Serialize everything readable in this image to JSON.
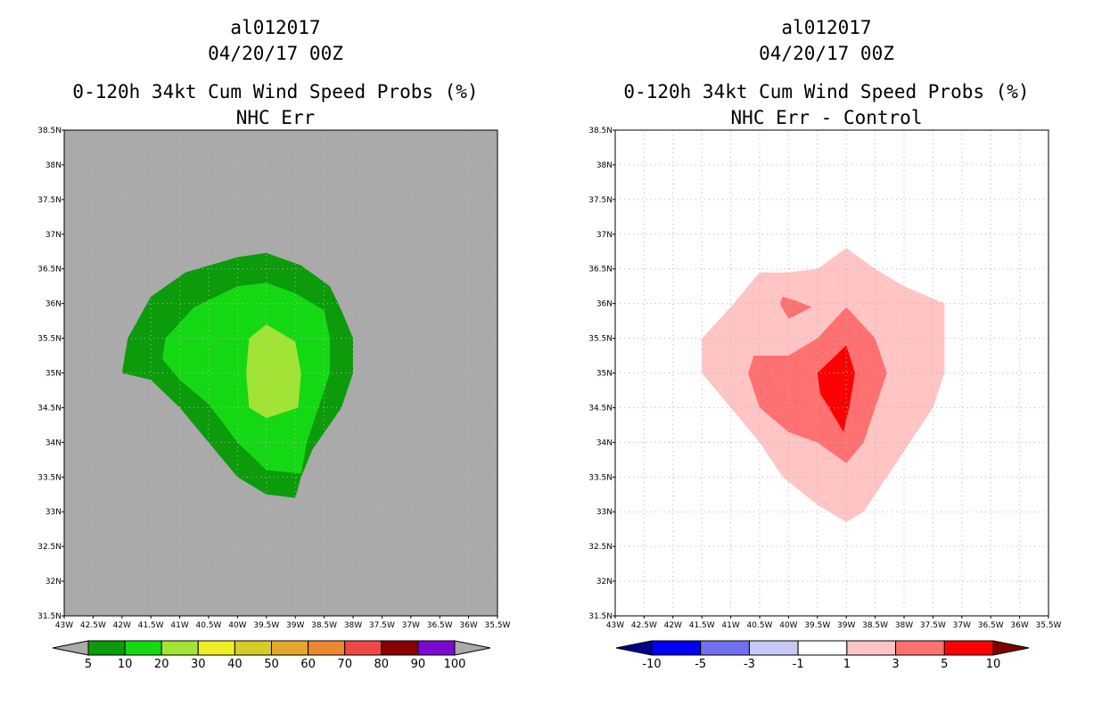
{
  "chart_data": [
    {
      "type": "heatmap",
      "title": [
        "al012017",
        "04/20/17 00Z",
        "0-120h 34kt Cum Wind Speed Probs (%)",
        "NHC Err"
      ],
      "x_ticks": [
        "43W",
        "42.5W",
        "42W",
        "41.5W",
        "41W",
        "40.5W",
        "40W",
        "39.5W",
        "39W",
        "38.5W",
        "38W",
        "37.5W",
        "37W",
        "36.5W",
        "36W",
        "35.5W"
      ],
      "y_ticks": [
        "31.5N",
        "32N",
        "32.5N",
        "33N",
        "33.5N",
        "34N",
        "34.5N",
        "35N",
        "35.5N",
        "36N",
        "36.5N",
        "37N",
        "37.5N",
        "38N",
        "38.5N"
      ],
      "xlim": [
        -43,
        -35.5
      ],
      "ylim": [
        31.5,
        38.5
      ],
      "background_color": "#aaaaaa",
      "grid": true,
      "contours": [
        {
          "level": "5-10",
          "color": "#0b9b0b",
          "points": [
            [
              -41.9,
              35.5
            ],
            [
              -41.5,
              36.1
            ],
            [
              -40.9,
              36.45
            ],
            [
              -40.0,
              36.67
            ],
            [
              -39.5,
              36.73
            ],
            [
              -38.9,
              36.55
            ],
            [
              -38.4,
              36.25
            ],
            [
              -38.2,
              35.9
            ],
            [
              -38.0,
              35.5
            ],
            [
              -38.0,
              35.0
            ],
            [
              -38.2,
              34.5
            ],
            [
              -38.7,
              33.9
            ],
            [
              -38.9,
              33.5
            ],
            [
              -39.0,
              33.2
            ],
            [
              -39.5,
              33.25
            ],
            [
              -40.0,
              33.5
            ],
            [
              -40.5,
              34.0
            ],
            [
              -41.0,
              34.5
            ],
            [
              -41.5,
              34.9
            ],
            [
              -42.0,
              35.0
            ]
          ]
        },
        {
          "level": "10-20",
          "color": "#15d815",
          "points": [
            [
              -41.25,
              35.5
            ],
            [
              -40.75,
              35.95
            ],
            [
              -40.0,
              36.25
            ],
            [
              -39.5,
              36.3
            ],
            [
              -39.0,
              36.15
            ],
            [
              -38.5,
              35.9
            ],
            [
              -38.4,
              35.5
            ],
            [
              -38.4,
              35.0
            ],
            [
              -38.6,
              34.5
            ],
            [
              -38.8,
              34.0
            ],
            [
              -38.9,
              33.55
            ],
            [
              -39.5,
              33.6
            ],
            [
              -40.0,
              34.0
            ],
            [
              -40.5,
              34.55
            ],
            [
              -41.0,
              34.9
            ],
            [
              -41.3,
              35.2
            ]
          ]
        },
        {
          "level": "20-30",
          "color": "#a2e434",
          "points": [
            [
              -39.8,
              35.5
            ],
            [
              -39.5,
              35.7
            ],
            [
              -39.0,
              35.45
            ],
            [
              -38.9,
              35.0
            ],
            [
              -38.95,
              34.5
            ],
            [
              -39.5,
              34.35
            ],
            [
              -39.8,
              34.5
            ],
            [
              -39.85,
              35.0
            ]
          ]
        }
      ],
      "colorbar": {
        "labels": [
          "5",
          "10",
          "20",
          "30",
          "40",
          "50",
          "60",
          "70",
          "80",
          "90",
          "100"
        ],
        "colors": [
          "#0b9b0b",
          "#15d815",
          "#a2e434",
          "#eeee22",
          "#d5cc27",
          "#e4a62c",
          "#ee8830",
          "#f04848",
          "#890000",
          "#7d07d3"
        ],
        "under_color": "#aaaaaa",
        "over_color": "#aaaaaa"
      }
    },
    {
      "type": "heatmap",
      "title": [
        "al012017",
        "04/20/17 00Z",
        "0-120h 34kt Cum Wind Speed Probs (%)",
        "NHC Err - Control"
      ],
      "x_ticks": [
        "43W",
        "42.5W",
        "42W",
        "41.5W",
        "41W",
        "40.5W",
        "40W",
        "39.5W",
        "39W",
        "38.5W",
        "38W",
        "37.5W",
        "37W",
        "36.5W",
        "36W",
        "35.5W"
      ],
      "y_ticks": [
        "31.5N",
        "32N",
        "32.5N",
        "33N",
        "33.5N",
        "34N",
        "34.5N",
        "35N",
        "35.5N",
        "36N",
        "36.5N",
        "37N",
        "37.5N",
        "38N",
        "38.5N"
      ],
      "xlim": [
        -43,
        -35.5
      ],
      "ylim": [
        31.5,
        38.5
      ],
      "background_color": "#ffffff",
      "grid": true,
      "contours": [
        {
          "level": "1-3",
          "color": "#ffc4c4",
          "points": [
            [
              -41.5,
              35.5
            ],
            [
              -41.0,
              35.95
            ],
            [
              -40.5,
              36.45
            ],
            [
              -40.0,
              36.45
            ],
            [
              -39.5,
              36.5
            ],
            [
              -39.0,
              36.8
            ],
            [
              -38.5,
              36.5
            ],
            [
              -38.0,
              36.25
            ],
            [
              -37.3,
              36.0
            ],
            [
              -37.3,
              35.5
            ],
            [
              -37.3,
              35.0
            ],
            [
              -37.5,
              34.5
            ],
            [
              -37.9,
              34.0
            ],
            [
              -38.3,
              33.5
            ],
            [
              -38.7,
              33.0
            ],
            [
              -39.0,
              32.85
            ],
            [
              -39.5,
              33.1
            ],
            [
              -40.1,
              33.5
            ],
            [
              -40.5,
              34.0
            ],
            [
              -41.0,
              34.5
            ],
            [
              -41.5,
              35.0
            ]
          ]
        },
        {
          "level": "3-5",
          "color": "#ff7070",
          "points": [
            [
              -40.6,
              35.25
            ],
            [
              -40.0,
              35.25
            ],
            [
              -39.5,
              35.5
            ],
            [
              -39.0,
              35.95
            ],
            [
              -38.5,
              35.5
            ],
            [
              -38.3,
              35.0
            ],
            [
              -38.5,
              34.5
            ],
            [
              -38.7,
              34.0
            ],
            [
              -39.0,
              33.7
            ],
            [
              -39.5,
              34.0
            ],
            [
              -40.0,
              34.15
            ],
            [
              -40.5,
              34.5
            ],
            [
              -40.7,
              35.0
            ]
          ]
        },
        {
          "level": "3-5 spot",
          "color": "#ff7070",
          "points": [
            [
              -40.1,
              36.1
            ],
            [
              -39.9,
              36.05
            ],
            [
              -39.6,
              35.95
            ],
            [
              -40.0,
              35.78
            ],
            [
              -40.15,
              36.0
            ]
          ]
        },
        {
          "level": "5-10",
          "color": "#ff0000",
          "points": [
            [
              -39.5,
              35.0
            ],
            [
              -39.0,
              35.4
            ],
            [
              -38.85,
              35.0
            ],
            [
              -38.95,
              34.5
            ],
            [
              -39.05,
              34.15
            ],
            [
              -39.3,
              34.5
            ],
            [
              -39.45,
              34.7
            ]
          ]
        }
      ],
      "colorbar": {
        "labels": [
          "-10",
          "-5",
          "-3",
          "-1",
          "1",
          "3",
          "5",
          "10"
        ],
        "colors": [
          "#0000f0",
          "#7070f0",
          "#c8c8f5",
          "#ffffff",
          "#ffc4c4",
          "#ff7070",
          "#ff0000"
        ],
        "under_color": "#000086",
        "over_color": "#7c0000"
      }
    }
  ]
}
